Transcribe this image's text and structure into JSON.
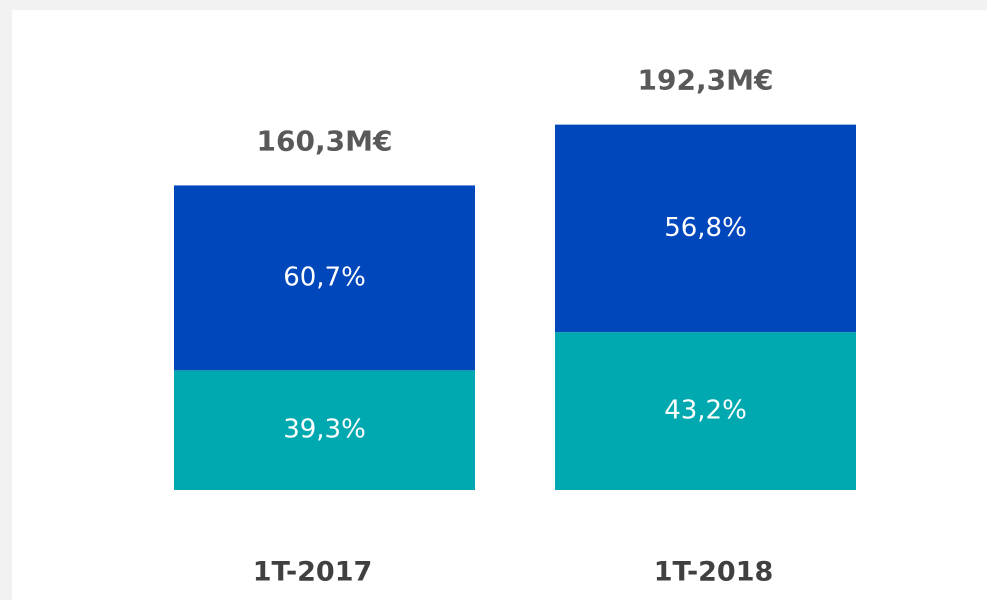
{
  "chart_data": {
    "type": "stacked_bar",
    "categories": [
      "1T-2017",
      "1T-2018"
    ],
    "series": [
      {
        "color": "#00a9b0",
        "values": [
          39.3,
          43.2
        ],
        "value_labels": [
          "39,3%",
          "43,2%"
        ]
      },
      {
        "color": "#0047bb",
        "values": [
          60.7,
          56.8
        ],
        "value_labels": [
          "60,7%",
          "56,8%"
        ]
      }
    ],
    "totals": {
      "values": [
        160.3,
        192.3
      ],
      "value_labels": [
        "160,3M€",
        "192,3M€"
      ]
    }
  }
}
